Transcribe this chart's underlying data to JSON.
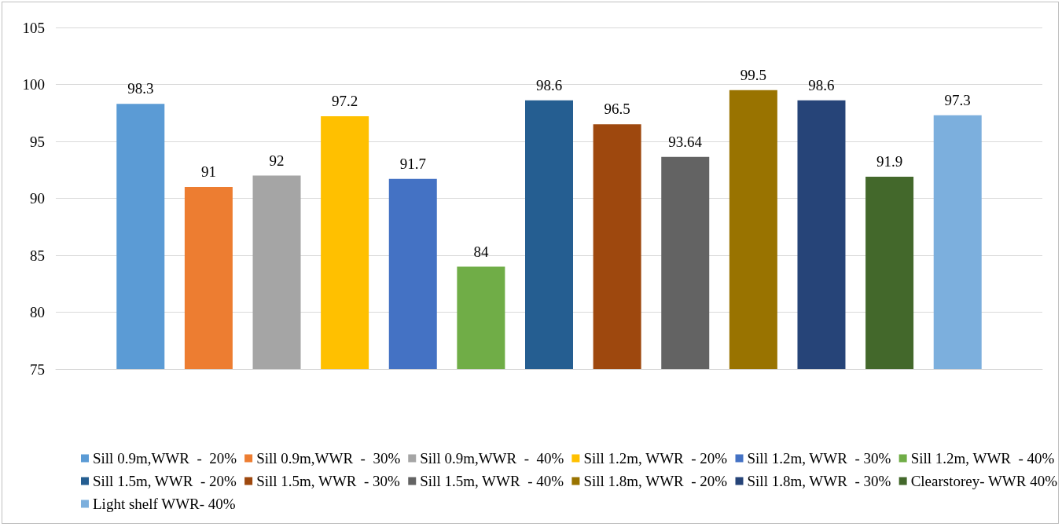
{
  "chart_data": {
    "type": "bar",
    "categories": [
      null
    ],
    "series": [
      {
        "name": "Sill 0.9m,WWR  -  20%",
        "color": "#5b9bd5",
        "values": [
          98.3
        ]
      },
      {
        "name": "Sill 0.9m,WWR  -  30%",
        "color": "#ed7d31",
        "values": [
          91
        ]
      },
      {
        "name": "Sill 0.9m,WWR  -  40%",
        "color": "#a5a5a5",
        "values": [
          92
        ]
      },
      {
        "name": "Sill 1.2m, WWR  - 20%",
        "color": "#ffc000",
        "values": [
          97.2
        ]
      },
      {
        "name": "Sill 1.2m, WWR  - 30%",
        "color": "#4472c4",
        "values": [
          91.7
        ]
      },
      {
        "name": "Sill 1.2m, WWR  - 40%",
        "color": "#70ad47",
        "values": [
          84
        ]
      },
      {
        "name": "Sill 1.5m, WWR  - 20%",
        "color": "#255e91",
        "values": [
          98.6
        ]
      },
      {
        "name": "Sill 1.5m, WWR  - 30%",
        "color": "#9e480e",
        "values": [
          96.5
        ]
      },
      {
        "name": "Sill 1.5m, WWR  - 40%",
        "color": "#636363",
        "values": [
          93.64
        ]
      },
      {
        "name": "Sill 1.8m, WWR  - 20%",
        "color": "#997300",
        "values": [
          99.5
        ]
      },
      {
        "name": "Sill 1.8m, WWR  - 30%",
        "color": "#264478",
        "values": [
          98.6
        ]
      },
      {
        "name": "Clearstorey- WWR 40%",
        "color": "#43682b",
        "values": [
          91.9
        ]
      },
      {
        "name": "Light shelf WWR- 40%",
        "color": "#7cafdd",
        "values": [
          97.3
        ]
      }
    ],
    "ylim": [
      75,
      105
    ],
    "yticks": [
      75,
      80,
      85,
      90,
      95,
      100,
      105
    ],
    "grid": "y",
    "legend": "bottom",
    "data_labels": true
  }
}
